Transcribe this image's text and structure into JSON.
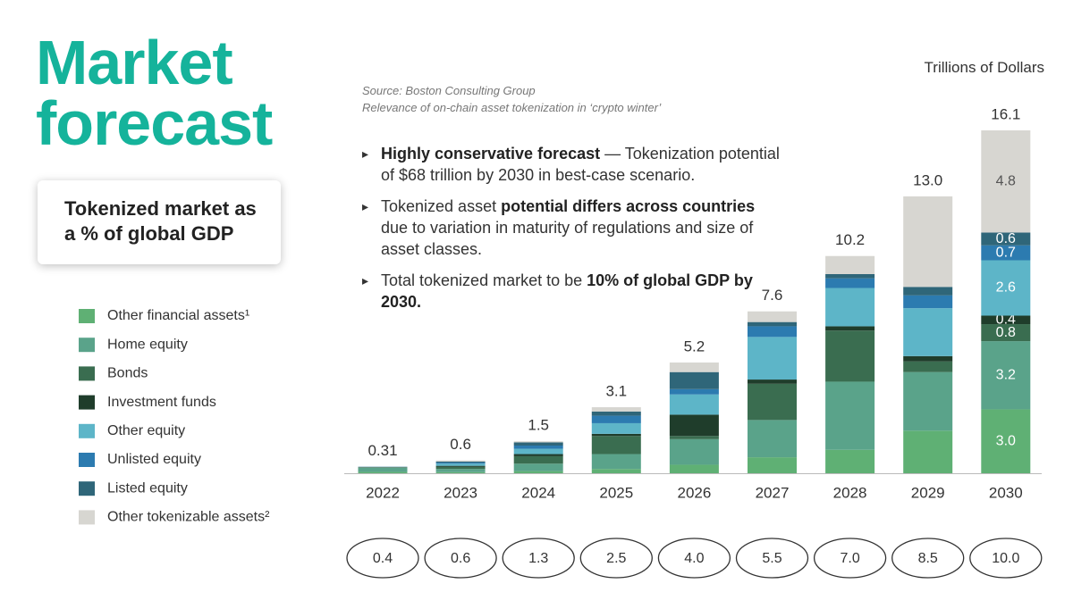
{
  "slide": {
    "title": "Market forecast",
    "box_text": "Tokenized market as a % of global GDP",
    "source": "Source: Boston Consulting Group",
    "source_detail": "Relevance of on-chain asset tokenization in ‘crypto winter’",
    "bullets": [
      [
        {
          "text": "Highly conservative forecast",
          "bold": true
        },
        {
          "text": " — Tokenization potential of $68 trillion by 2030 in best-case scenario.",
          "bold": false
        }
      ],
      [
        {
          "text": "Tokenized asset ",
          "bold": false
        },
        {
          "text": "potential differs across countries",
          "bold": true
        },
        {
          "text": " due to variation in maturity of regulations and size of asset classes.",
          "bold": false
        }
      ],
      [
        {
          "text": "Total tokenized market to be ",
          "bold": false
        },
        {
          "text": "10% of global GDP by 2030.",
          "bold": true
        }
      ]
    ]
  },
  "chart_data": {
    "type": "stacked_bar",
    "unit_label": "Trillions of Dollars",
    "categories": [
      "2022",
      "2023",
      "2024",
      "2025",
      "2026",
      "2027",
      "2028",
      "2029",
      "2030"
    ],
    "totals": [
      0.31,
      0.6,
      1.5,
      3.1,
      5.2,
      7.6,
      10.2,
      13.0,
      16.1
    ],
    "total_labels": [
      "0.31",
      "0.6",
      "1.5",
      "3.1",
      "5.2",
      "7.6",
      "10.2",
      "13.0",
      "16.1"
    ],
    "gdp_share": [
      0.4,
      0.6,
      1.3,
      2.5,
      4.0,
      5.5,
      7.0,
      8.5,
      10.0
    ],
    "gdp_share_labels": [
      "0.4",
      "0.6",
      "1.3",
      "2.5",
      "4.0",
      "5.5",
      "7.0",
      "8.5",
      "10.0"
    ],
    "series": [
      {
        "name": "Other financial assets¹",
        "color": "#5fb074",
        "label_color": "#ffffff",
        "values": [
          0.06,
          0.05,
          0.1,
          0.2,
          0.4,
          0.75,
          1.1,
          2.0,
          3.0
        ],
        "value_labels": [
          null,
          null,
          null,
          null,
          null,
          null,
          null,
          null,
          "3.0"
        ]
      },
      {
        "name": "Home equity",
        "color": "#5aa38a",
        "label_color": "#ffffff",
        "values": [
          0.2,
          0.15,
          0.35,
          0.7,
          1.2,
          1.75,
          3.2,
          2.75,
          3.2
        ],
        "value_labels": [
          null,
          null,
          null,
          null,
          null,
          null,
          null,
          null,
          "3.2"
        ]
      },
      {
        "name": "Bonds",
        "color": "#3a6d50",
        "label_color": "#ffffff",
        "values": [
          0.02,
          0.1,
          0.35,
          0.85,
          0.15,
          1.7,
          2.4,
          0.5,
          0.8
        ],
        "value_labels": [
          null,
          null,
          null,
          null,
          null,
          null,
          null,
          null,
          "0.8"
        ]
      },
      {
        "name": "Investment funds",
        "color": "#1f3d2b",
        "label_color": "#ffffff",
        "values": [
          0.01,
          0.05,
          0.1,
          0.1,
          1.0,
          0.2,
          0.2,
          0.25,
          0.4
        ],
        "value_labels": [
          null,
          null,
          null,
          null,
          null,
          null,
          null,
          null,
          "0.4"
        ]
      },
      {
        "name": "Other equity",
        "color": "#5db5c8",
        "label_color": "#ffffff",
        "values": [
          0.01,
          0.1,
          0.25,
          0.5,
          0.95,
          2.0,
          1.8,
          2.25,
          2.6
        ],
        "value_labels": [
          null,
          null,
          null,
          null,
          null,
          null,
          null,
          null,
          "2.6"
        ]
      },
      {
        "name": "Unlisted equity",
        "color": "#2c7bb0",
        "label_color": "#ffffff",
        "values": [
          0.005,
          0.05,
          0.15,
          0.35,
          0.25,
          0.5,
          0.45,
          0.6,
          0.7
        ],
        "value_labels": [
          null,
          null,
          null,
          null,
          null,
          null,
          null,
          null,
          "0.7"
        ]
      },
      {
        "name": "Listed equity",
        "color": "#2f6679",
        "label_color": "#ffffff",
        "values": [
          0.005,
          0.05,
          0.15,
          0.2,
          0.8,
          0.2,
          0.2,
          0.4,
          0.6
        ],
        "value_labels": [
          null,
          null,
          null,
          null,
          null,
          null,
          null,
          null,
          "0.6"
        ]
      },
      {
        "name": "Other tokenizable assets²",
        "color": "#d7d6d1",
        "label_color": "#555555",
        "values": [
          0,
          0.05,
          0.05,
          0.2,
          0.45,
          0.5,
          0.85,
          4.25,
          4.8
        ],
        "value_labels": [
          null,
          null,
          null,
          null,
          null,
          null,
          null,
          null,
          "4.8"
        ]
      }
    ]
  }
}
